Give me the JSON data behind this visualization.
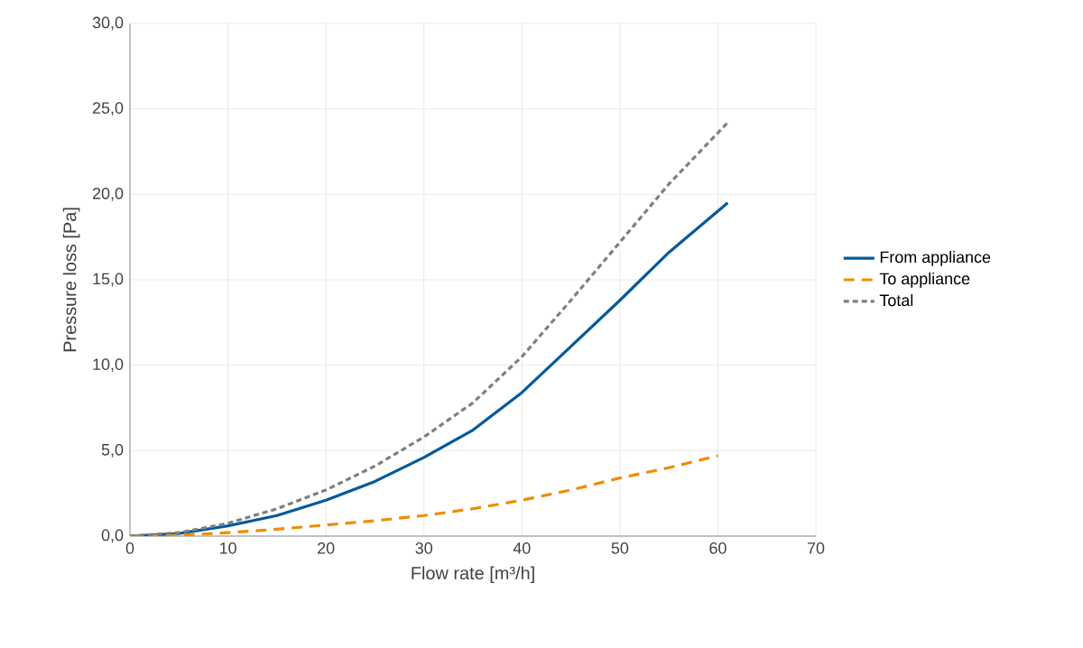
{
  "chart_data": {
    "type": "line",
    "xlabel": "Flow rate [m³/h]",
    "ylabel": "Pressure loss [Pa]",
    "xlim": [
      0,
      70
    ],
    "xticks": [
      0,
      10,
      20,
      30,
      40,
      50,
      60,
      70
    ],
    "ylim": [
      0,
      30
    ],
    "yticks": [
      {
        "value": 0,
        "label": "0,0"
      },
      {
        "value": 5,
        "label": "5,0"
      },
      {
        "value": 10,
        "label": "10,0"
      },
      {
        "value": 15,
        "label": "15,0"
      },
      {
        "value": 20,
        "label": "20,0"
      },
      {
        "value": 25,
        "label": "25,0"
      },
      {
        "value": 30,
        "label": "30,0"
      }
    ],
    "grid": true,
    "legend": "right",
    "series": [
      {
        "name": "From appliance",
        "color": "#005a9c",
        "line_style": "solid",
        "x": [
          0,
          5,
          10,
          15,
          20,
          25,
          30,
          35,
          40,
          45,
          50,
          55,
          61
        ],
        "values": [
          0,
          0.15,
          0.6,
          1.2,
          2.1,
          3.2,
          4.6,
          6.2,
          8.4,
          11.1,
          13.8,
          16.6,
          19.5
        ]
      },
      {
        "name": "To appliance",
        "color": "#f08c00",
        "line_style": "dashed",
        "x": [
          0,
          5,
          10,
          15,
          20,
          25,
          30,
          35,
          40,
          45,
          50,
          55,
          60
        ],
        "values": [
          0,
          0.05,
          0.2,
          0.4,
          0.65,
          0.9,
          1.2,
          1.6,
          2.1,
          2.7,
          3.4,
          4.0,
          4.7
        ]
      },
      {
        "name": "Total",
        "color": "#7f7f7f",
        "line_style": "dotted",
        "x": [
          0,
          5,
          10,
          15,
          20,
          25,
          30,
          35,
          40,
          45,
          50,
          55,
          61
        ],
        "values": [
          0,
          0.2,
          0.75,
          1.6,
          2.7,
          4.1,
          5.8,
          7.8,
          10.5,
          13.8,
          17.2,
          20.6,
          24.2
        ]
      }
    ]
  }
}
